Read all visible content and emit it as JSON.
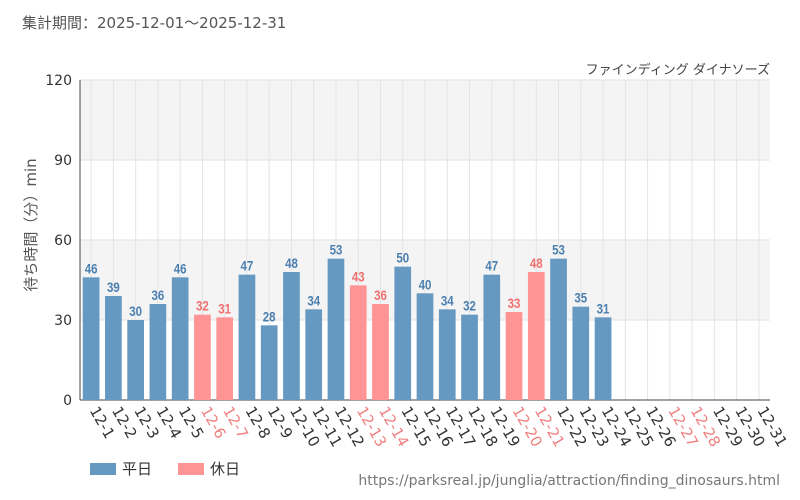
{
  "period_label": "集計期間：2025-12-01～2025-12-31",
  "source_url": "https://parksreal.jp/junglia/attraction/finding_dinosaurs.html",
  "legend": [
    {
      "label": "平日",
      "color": "#6699c2"
    },
    {
      "label": "休日",
      "color": "#ff9494"
    }
  ],
  "colors": {
    "weekday_label": "#4a7fb0",
    "holiday_label": "#f07070",
    "tick_weekday": "#333333",
    "tick_holiday": "#f08080"
  },
  "chart_data": {
    "type": "bar",
    "title": "ファインディング ダイナソーズ",
    "xlabel": "",
    "ylabel": "待ち時間（分）min",
    "ylim": [
      0,
      120
    ],
    "yticks": [
      0,
      30,
      60,
      90,
      120
    ],
    "categories": [
      "12-1",
      "12-2",
      "12-3",
      "12-4",
      "12-5",
      "12-6",
      "12-7",
      "12-8",
      "12-9",
      "12-10",
      "12-11",
      "12-12",
      "12-13",
      "12-14",
      "12-15",
      "12-16",
      "12-17",
      "12-18",
      "12-19",
      "12-20",
      "12-21",
      "12-22",
      "12-23",
      "12-24",
      "12-25",
      "12-26",
      "12-27",
      "12-28",
      "12-29",
      "12-30",
      "12-31"
    ],
    "values": [
      46,
      39,
      30,
      36,
      46,
      32,
      31,
      47,
      28,
      48,
      34,
      53,
      43,
      36,
      50,
      40,
      34,
      32,
      47,
      33,
      48,
      53,
      35,
      31,
      null,
      null,
      null,
      null,
      null,
      null,
      null
    ],
    "day_type": [
      "weekday",
      "weekday",
      "weekday",
      "weekday",
      "weekday",
      "holiday",
      "holiday",
      "weekday",
      "weekday",
      "weekday",
      "weekday",
      "weekday",
      "holiday",
      "holiday",
      "weekday",
      "weekday",
      "weekday",
      "weekday",
      "weekday",
      "holiday",
      "holiday",
      "weekday",
      "weekday",
      "weekday",
      "weekday",
      "weekday",
      "holiday",
      "holiday",
      "weekday",
      "weekday",
      "weekday"
    ]
  }
}
